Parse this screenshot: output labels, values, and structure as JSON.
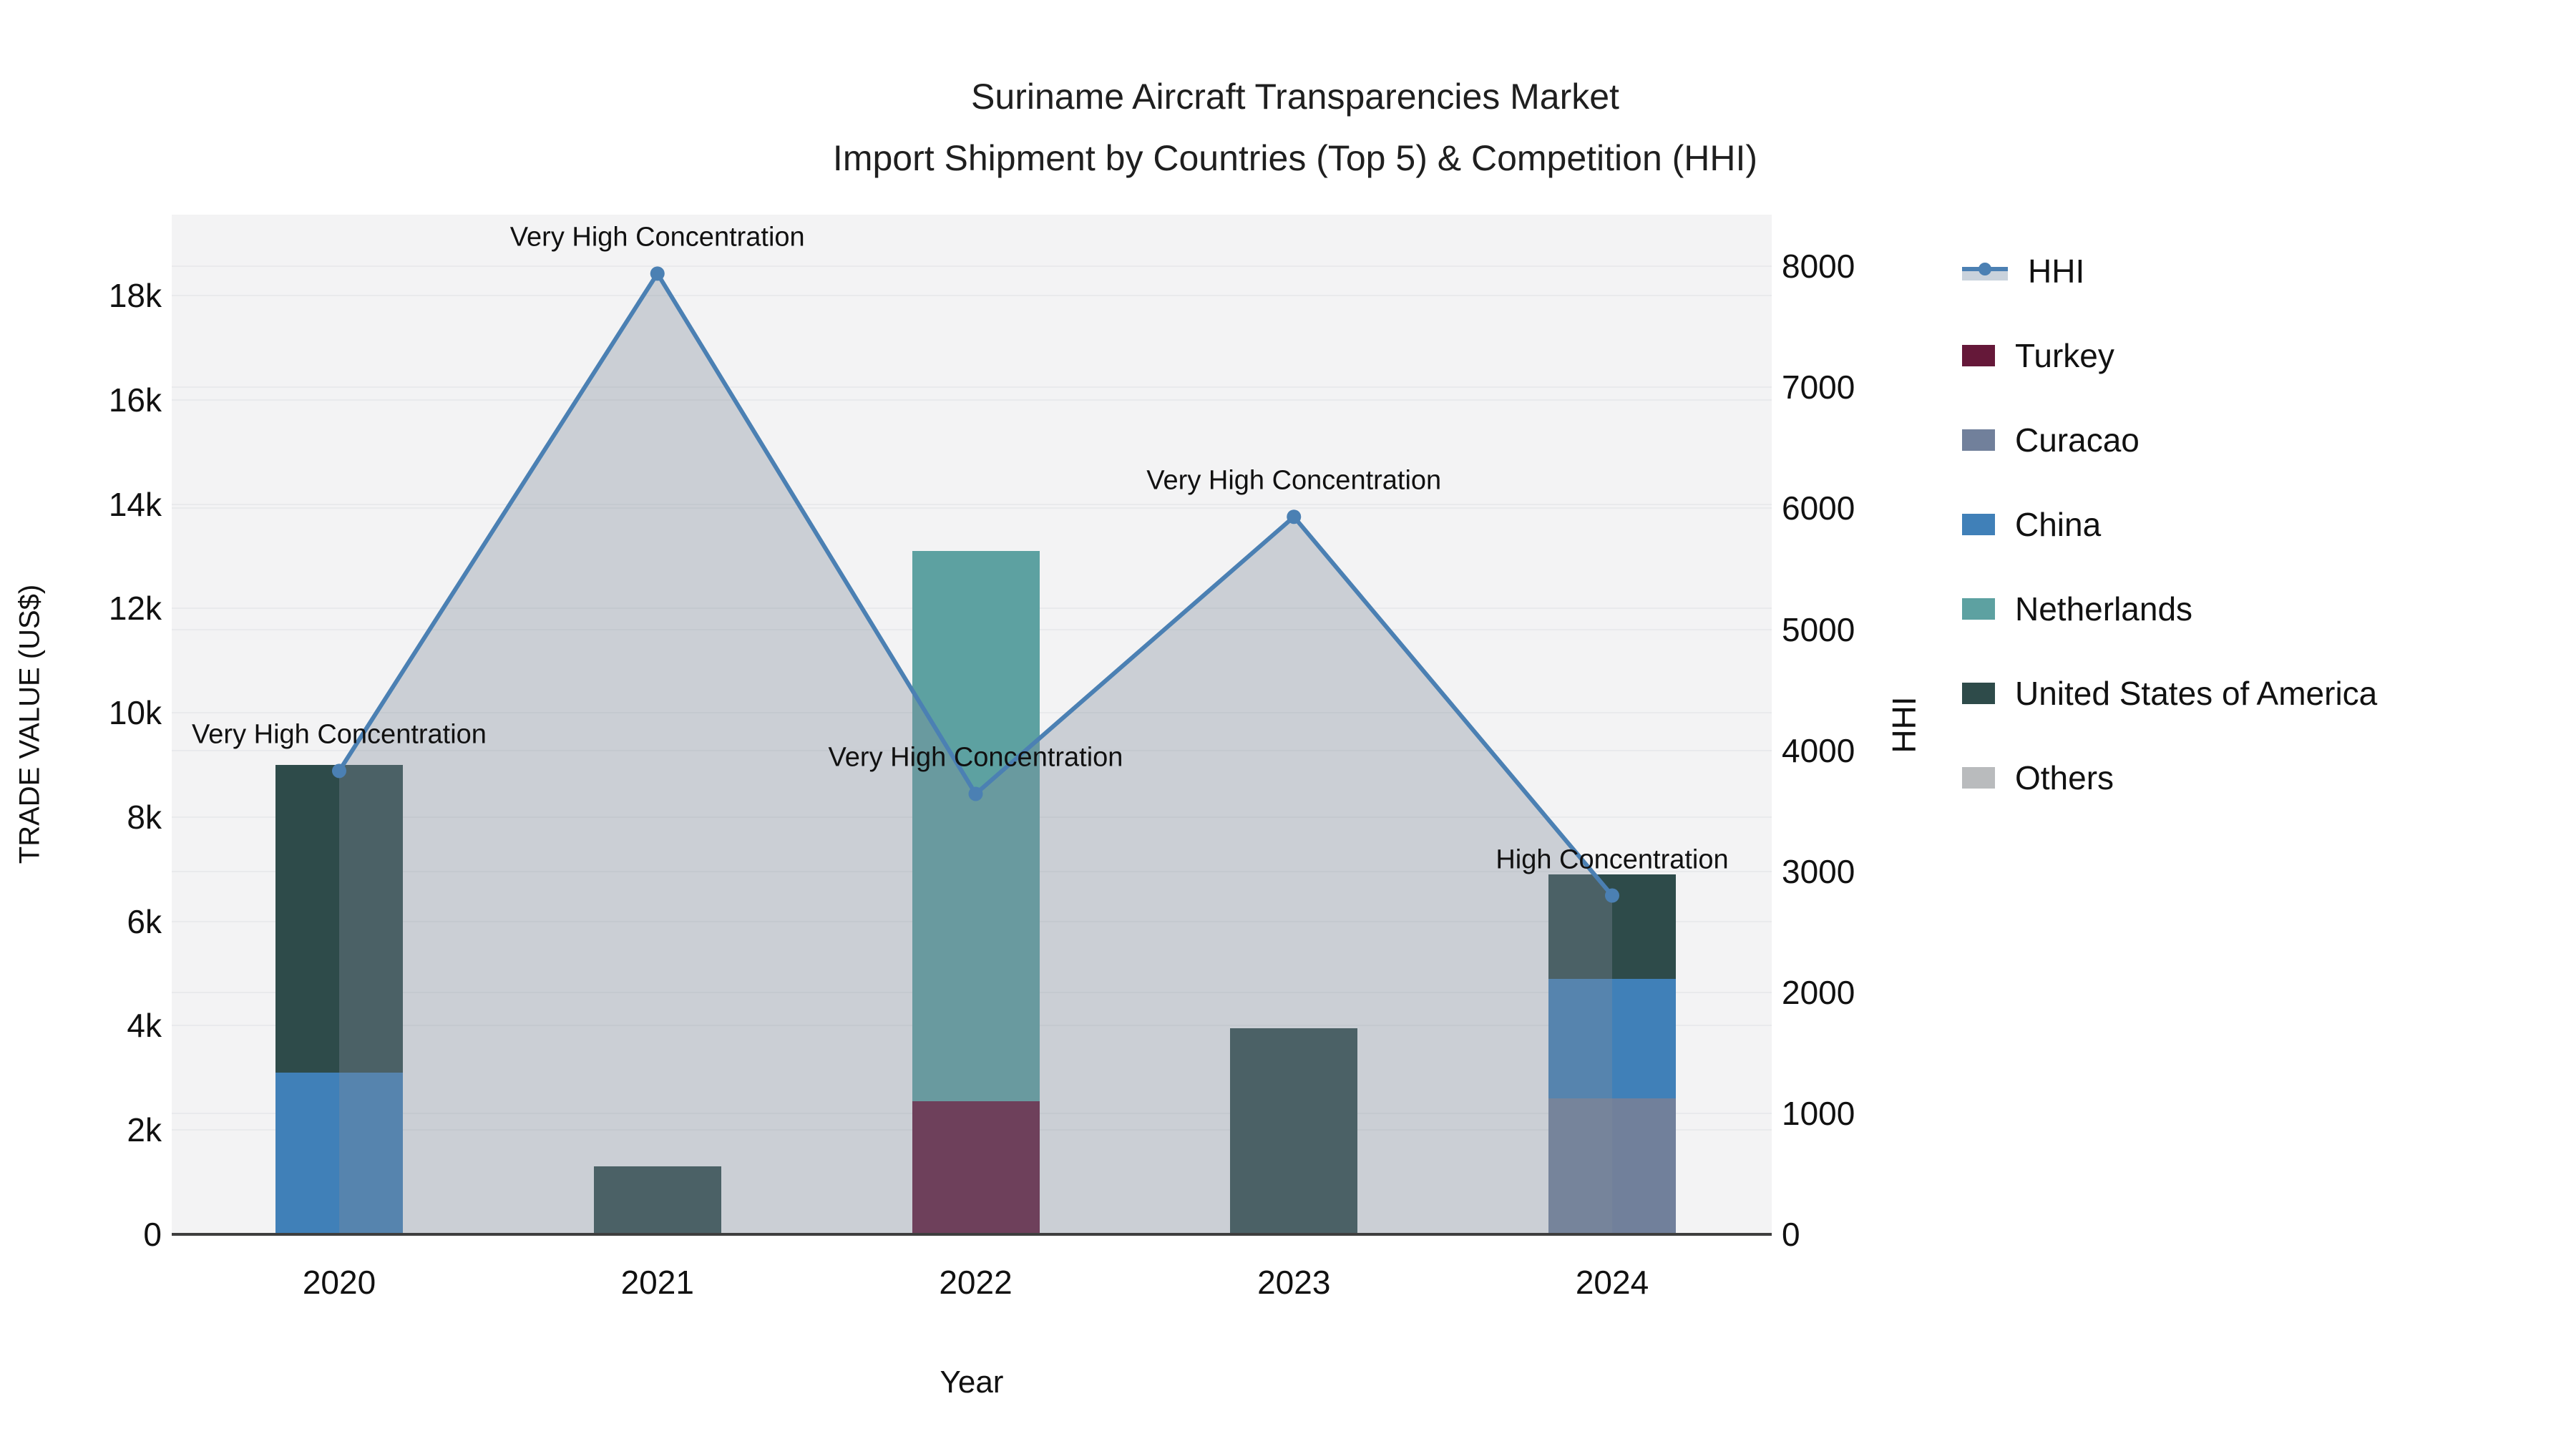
{
  "title": {
    "line1": "Suriname Aircraft Transparencies Market",
    "line2": "Import Shipment by Countries (Top 5) & Competition (HHI)"
  },
  "axes": {
    "x": {
      "title": "Year",
      "ticks": [
        "2020",
        "2021",
        "2022",
        "2023",
        "2024"
      ]
    },
    "y_left": {
      "title": "TRADE VALUE (US$)",
      "ticks": [
        "0",
        "2k",
        "4k",
        "6k",
        "8k",
        "10k",
        "12k",
        "14k",
        "16k",
        "18k"
      ],
      "tick_values": [
        0,
        2000,
        4000,
        6000,
        8000,
        10000,
        12000,
        14000,
        16000,
        18000
      ]
    },
    "y_right": {
      "title": "HHI",
      "ticks": [
        "0",
        "1000",
        "2000",
        "3000",
        "4000",
        "5000",
        "6000",
        "7000",
        "8000"
      ],
      "tick_values": [
        0,
        1000,
        2000,
        3000,
        4000,
        5000,
        6000,
        7000,
        8000
      ]
    }
  },
  "legend": {
    "items": [
      {
        "label": "HHI",
        "kind": "line",
        "color": "#4b80b3"
      },
      {
        "label": "Turkey",
        "kind": "swatch",
        "color": "#651839"
      },
      {
        "label": "Curacao",
        "kind": "swatch",
        "color": "#71809b"
      },
      {
        "label": "China",
        "kind": "swatch",
        "color": "#4080b8"
      },
      {
        "label": "Netherlands",
        "kind": "swatch",
        "color": "#5da1a1"
      },
      {
        "label": "United States of America",
        "kind": "swatch",
        "color": "#2e4b4a"
      },
      {
        "label": "Others",
        "kind": "swatch",
        "color": "#b9bbbd"
      }
    ]
  },
  "chart_data": {
    "type": "bar",
    "subtype": "stacked-bars-with-line-area",
    "title": "Suriname Aircraft Transparencies Market Import Shipment by Countries (Top 5) & Competition (HHI)",
    "xlabel": "Year",
    "ylabel_left": "TRADE VALUE (US$)",
    "ylabel_right": "HHI",
    "categories": [
      "2020",
      "2021",
      "2022",
      "2023",
      "2024"
    ],
    "y_left_range": [
      0,
      19550
    ],
    "y_right_range": [
      0,
      8427
    ],
    "grid": "on",
    "legend_position": "right",
    "series": [
      {
        "name": "United States of America",
        "axis": "left",
        "color": "#2e4b4a",
        "values": [
          9000,
          1300,
          2900,
          3950,
          6900
        ]
      },
      {
        "name": "Netherlands",
        "axis": "left",
        "color": "#5da1a1",
        "values": [
          0,
          0,
          13100,
          0,
          0
        ]
      },
      {
        "name": "China",
        "axis": "left",
        "color": "#4080b8",
        "values": [
          3100,
          0,
          0,
          0,
          4900
        ]
      },
      {
        "name": "Curacao",
        "axis": "left",
        "color": "#71809b",
        "values": [
          0,
          0,
          0,
          0,
          2600
        ]
      },
      {
        "name": "Turkey",
        "axis": "left",
        "color": "#651839",
        "values": [
          0,
          0,
          2550,
          0,
          0
        ]
      }
    ],
    "line": {
      "name": "HHI",
      "axis": "right",
      "color": "#4b80b3",
      "area_fill": "rgba(130,140,155,0.35)",
      "values": [
        3830,
        7940,
        3640,
        5930,
        2800
      ]
    },
    "annotations": [
      {
        "x": "2020",
        "text": "Very High Concentration"
      },
      {
        "x": "2021",
        "text": "Very High Concentration"
      },
      {
        "x": "2022",
        "text": "Very High Concentration"
      },
      {
        "x": "2023",
        "text": "Very High Concentration"
      },
      {
        "x": "2024",
        "text": "High Concentration"
      }
    ]
  },
  "colors": {
    "plot_bg": "#f3f3f4",
    "grid": "#e9eaec",
    "axis_line": "#3e3e3e",
    "hhi_line": "#4b80b3",
    "text": "#111111"
  }
}
